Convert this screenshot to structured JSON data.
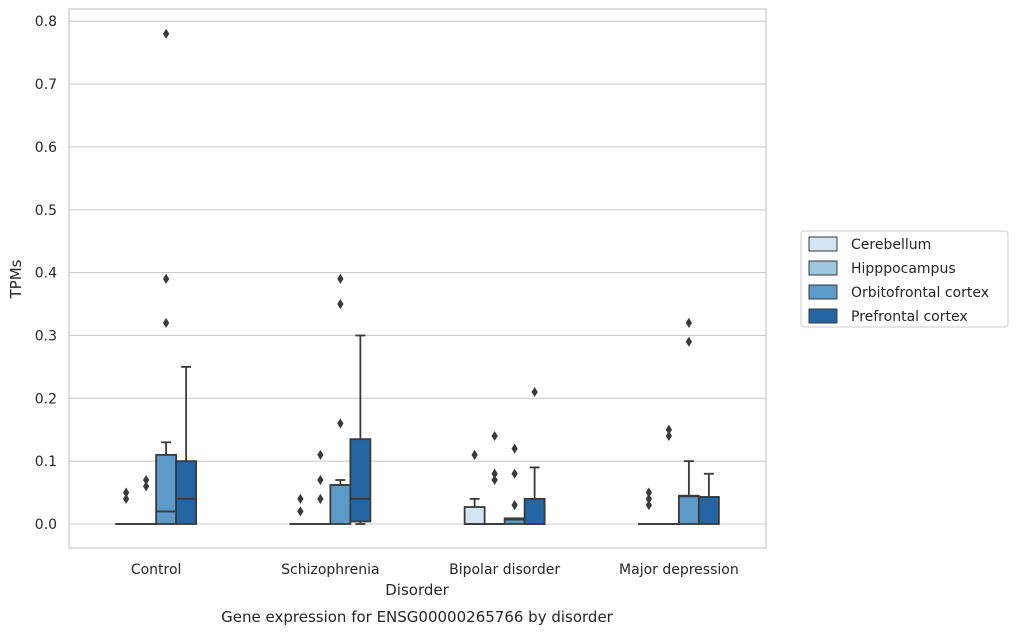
{
  "chart_data": {
    "type": "box",
    "title": "Gene expression for ENSG00000265766 by disorder",
    "xlabel": "Disorder",
    "ylabel": "TPMs",
    "ylim": [
      -0.04,
      0.82
    ],
    "yticks": [
      "0.0",
      "0.1",
      "0.2",
      "0.3",
      "0.4",
      "0.5",
      "0.6",
      "0.7",
      "0.8"
    ],
    "grid": true,
    "legend_position": "right",
    "categories": [
      "Control",
      "Schizophrenia",
      "Bipolar disorder",
      "Major depression"
    ],
    "series": [
      {
        "name": "Cerebellum",
        "color": "#d3e4f3",
        "boxes": [
          {
            "q1": 0,
            "median": 0,
            "q3": 0,
            "whisker_low": 0,
            "whisker_high": 0,
            "outliers": [
              0.04,
              0.05
            ]
          },
          {
            "q1": 0,
            "median": 0,
            "q3": 0,
            "whisker_low": 0,
            "whisker_high": 0,
            "outliers": [
              0.02,
              0.04
            ]
          },
          {
            "q1": 0,
            "median": 0,
            "q3": 0.027,
            "whisker_low": 0,
            "whisker_high": 0.04,
            "outliers": [
              0.11
            ]
          },
          {
            "q1": 0,
            "median": 0,
            "q3": 0,
            "whisker_low": 0,
            "whisker_high": 0,
            "outliers": [
              0.03,
              0.04,
              0.05
            ]
          }
        ]
      },
      {
        "name": "Hipppocampus",
        "color": "#9fc7e0",
        "boxes": [
          {
            "q1": 0,
            "median": 0,
            "q3": 0,
            "whisker_low": 0,
            "whisker_high": 0,
            "outliers": [
              0.06,
              0.07
            ]
          },
          {
            "q1": 0,
            "median": 0,
            "q3": 0,
            "whisker_low": 0,
            "whisker_high": 0,
            "outliers": [
              0.04,
              0.07,
              0.11
            ]
          },
          {
            "q1": 0,
            "median": 0,
            "q3": 0,
            "whisker_low": 0,
            "whisker_high": 0,
            "outliers": [
              0.07,
              0.08,
              0.14
            ]
          },
          {
            "q1": 0,
            "median": 0,
            "q3": 0,
            "whisker_low": 0,
            "whisker_high": 0,
            "outliers": [
              0.14,
              0.15
            ]
          }
        ]
      },
      {
        "name": "Orbitofrontal cortex",
        "color": "#5b9ac9",
        "boxes": [
          {
            "q1": 0,
            "median": 0.02,
            "q3": 0.11,
            "whisker_low": 0,
            "whisker_high": 0.13,
            "outliers": [
              0.32,
              0.39,
              0.78
            ]
          },
          {
            "q1": 0,
            "median": 0.062,
            "q3": 0.062,
            "whisker_low": 0,
            "whisker_high": 0.07,
            "outliers": [
              0.16,
              0.35,
              0.39
            ]
          },
          {
            "q1": 0,
            "median": 0.007,
            "q3": 0.009,
            "whisker_low": 0,
            "whisker_high": 0.009,
            "outliers": [
              0.03,
              0.08,
              0.12
            ]
          },
          {
            "q1": 0,
            "median": 0.044,
            "q3": 0.045,
            "whisker_low": 0,
            "whisker_high": 0.1,
            "outliers": [
              0.29,
              0.32
            ]
          }
        ]
      },
      {
        "name": "Prefrontal cortex",
        "color": "#2465a4",
        "boxes": [
          {
            "q1": 0,
            "median": 0.04,
            "q3": 0.1,
            "whisker_low": 0,
            "whisker_high": 0.25,
            "outliers": []
          },
          {
            "q1": 0.004,
            "median": 0.04,
            "q3": 0.135,
            "whisker_low": 0,
            "whisker_high": 0.3,
            "outliers": []
          },
          {
            "q1": 0,
            "median": 0,
            "q3": 0.04,
            "whisker_low": 0,
            "whisker_high": 0.09,
            "outliers": [
              0.21
            ]
          },
          {
            "q1": 0,
            "median": 0.043,
            "q3": 0.043,
            "whisker_low": 0,
            "whisker_high": 0.08,
            "outliers": []
          }
        ]
      }
    ]
  }
}
